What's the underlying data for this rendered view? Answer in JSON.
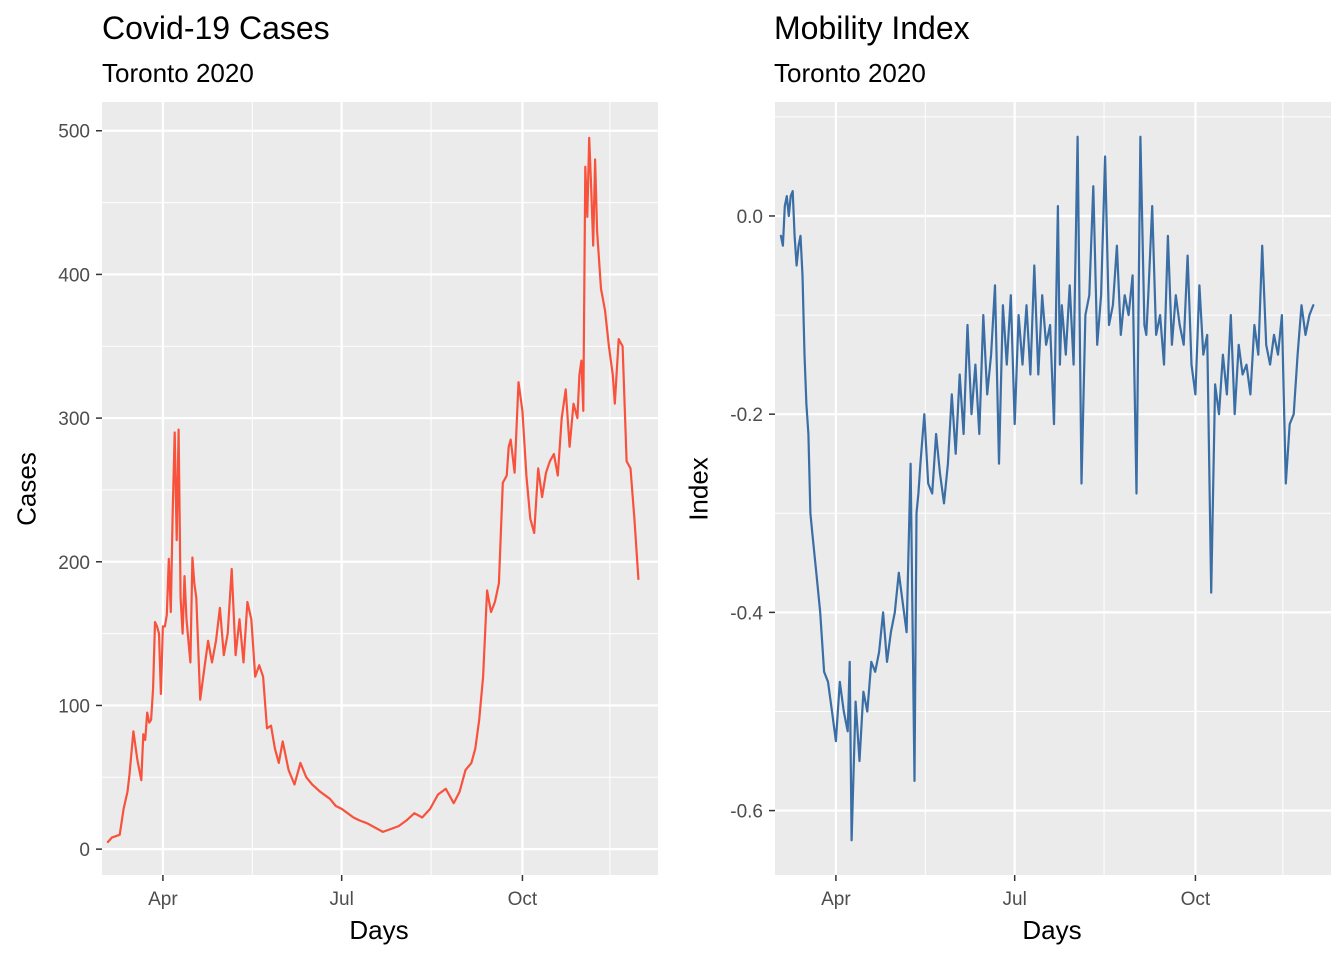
{
  "chart_data": [
    {
      "type": "line",
      "title": "Covid-19 Cases",
      "subtitle": "Toronto 2020",
      "xlabel": "Days",
      "ylabel": "Cases",
      "color": "#f8523d",
      "grid": true,
      "ylim": [
        -18,
        520
      ],
      "xlim": [
        "2020-03-01",
        "2020-12-09"
      ],
      "x_ticks": [
        {
          "date": "2020-04-01",
          "label": "Apr"
        },
        {
          "date": "2020-07-01",
          "label": "Jul"
        },
        {
          "date": "2020-10-01",
          "label": "Oct"
        }
      ],
      "y_ticks": [
        {
          "value": 0,
          "label": "0"
        },
        {
          "value": 100,
          "label": "100"
        },
        {
          "value": 200,
          "label": "200"
        },
        {
          "value": 300,
          "label": "300"
        },
        {
          "value": 400,
          "label": "400"
        },
        {
          "value": 500,
          "label": "500"
        }
      ],
      "series": [
        {
          "x": [
            "2020-03-04",
            "2020-03-06",
            "2020-03-08",
            "2020-03-10",
            "2020-03-12",
            "2020-03-14",
            "2020-03-15",
            "2020-03-17",
            "2020-03-19",
            "2020-03-21",
            "2020-03-22",
            "2020-03-23",
            "2020-03-24",
            "2020-03-25",
            "2020-03-26",
            "2020-03-27",
            "2020-03-28",
            "2020-03-29",
            "2020-03-30",
            "2020-03-31",
            "2020-04-01",
            "2020-04-02",
            "2020-04-03",
            "2020-04-04",
            "2020-04-05",
            "2020-04-06",
            "2020-04-07",
            "2020-04-08",
            "2020-04-09",
            "2020-04-10",
            "2020-04-11",
            "2020-04-12",
            "2020-04-13",
            "2020-04-14",
            "2020-04-15",
            "2020-04-16",
            "2020-04-17",
            "2020-04-18",
            "2020-04-20",
            "2020-04-22",
            "2020-04-24",
            "2020-04-26",
            "2020-04-28",
            "2020-04-30",
            "2020-05-02",
            "2020-05-04",
            "2020-05-06",
            "2020-05-08",
            "2020-05-10",
            "2020-05-12",
            "2020-05-14",
            "2020-05-16",
            "2020-05-18",
            "2020-05-20",
            "2020-05-22",
            "2020-05-24",
            "2020-05-26",
            "2020-05-28",
            "2020-05-30",
            "2020-06-01",
            "2020-06-04",
            "2020-06-07",
            "2020-06-10",
            "2020-06-13",
            "2020-06-16",
            "2020-06-20",
            "2020-06-25",
            "2020-06-28",
            "2020-07-01",
            "2020-07-04",
            "2020-07-07",
            "2020-07-10",
            "2020-07-14",
            "2020-07-18",
            "2020-07-22",
            "2020-07-26",
            "2020-07-30",
            "2020-08-03",
            "2020-08-07",
            "2020-08-11",
            "2020-08-15",
            "2020-08-19",
            "2020-08-23",
            "2020-08-27",
            "2020-08-30",
            "2020-09-02",
            "2020-09-05",
            "2020-09-07",
            "2020-09-09",
            "2020-09-11",
            "2020-09-13",
            "2020-09-15",
            "2020-09-17",
            "2020-09-19",
            "2020-09-21",
            "2020-09-23",
            "2020-09-24",
            "2020-09-25",
            "2020-09-27",
            "2020-09-29",
            "2020-10-01",
            "2020-10-03",
            "2020-10-05",
            "2020-10-07",
            "2020-10-09",
            "2020-10-11",
            "2020-10-13",
            "2020-10-15",
            "2020-10-17",
            "2020-10-19",
            "2020-10-21",
            "2020-10-23",
            "2020-10-25",
            "2020-10-27",
            "2020-10-29",
            "2020-10-30",
            "2020-10-31",
            "2020-11-01",
            "2020-11-02",
            "2020-11-03",
            "2020-11-04",
            "2020-11-05",
            "2020-11-06",
            "2020-11-07",
            "2020-11-08",
            "2020-11-10",
            "2020-11-12",
            "2020-11-14",
            "2020-11-16",
            "2020-11-17",
            "2020-11-19",
            "2020-11-21",
            "2020-11-23",
            "2020-11-25",
            "2020-11-27",
            "2020-11-29"
          ],
          "y": [
            5,
            8,
            9,
            10,
            28,
            40,
            52,
            82,
            62,
            48,
            80,
            76,
            95,
            88,
            90,
            112,
            158,
            155,
            150,
            108,
            155,
            155,
            163,
            202,
            165,
            235,
            290,
            215,
            292,
            175,
            150,
            190,
            160,
            145,
            130,
            203,
            185,
            175,
            104,
            125,
            145,
            130,
            145,
            168,
            135,
            150,
            195,
            135,
            160,
            130,
            172,
            160,
            120,
            128,
            120,
            84,
            86,
            70,
            60,
            75,
            55,
            45,
            60,
            50,
            45,
            40,
            35,
            30,
            28,
            25,
            22,
            20,
            18,
            15,
            12,
            14,
            16,
            20,
            25,
            22,
            28,
            38,
            42,
            32,
            40,
            55,
            60,
            70,
            90,
            120,
            180,
            165,
            172,
            185,
            255,
            260,
            280,
            285,
            262,
            325,
            305,
            260,
            230,
            220,
            265,
            245,
            262,
            270,
            275,
            260,
            300,
            320,
            280,
            310,
            300,
            330,
            340,
            305,
            475,
            440,
            495,
            460,
            420,
            480,
            430,
            390,
            375,
            350,
            330,
            310,
            355,
            350,
            270,
            265,
            230,
            188
          ]
        }
      ]
    },
    {
      "type": "line",
      "title": "Mobility Index",
      "subtitle": "Toronto 2020",
      "xlabel": "Days",
      "ylabel": "Index",
      "color": "#3a6ea5",
      "grid": true,
      "ylim": [
        -0.665,
        0.115
      ],
      "xlim": [
        "2020-03-01",
        "2020-12-09"
      ],
      "x_ticks": [
        {
          "date": "2020-04-01",
          "label": "Apr"
        },
        {
          "date": "2020-07-01",
          "label": "Jul"
        },
        {
          "date": "2020-10-01",
          "label": "Oct"
        }
      ],
      "y_ticks": [
        {
          "value": 0.0,
          "label": "0.0"
        },
        {
          "value": -0.2,
          "label": "-0.2"
        },
        {
          "value": -0.4,
          "label": "-0.4"
        },
        {
          "value": -0.6,
          "label": "-0.6"
        }
      ],
      "series": [
        {
          "x": [
            "2020-03-04",
            "2020-03-05",
            "2020-03-06",
            "2020-03-07",
            "2020-03-08",
            "2020-03-09",
            "2020-03-10",
            "2020-03-11",
            "2020-03-12",
            "2020-03-13",
            "2020-03-14",
            "2020-03-15",
            "2020-03-16",
            "2020-03-17",
            "2020-03-18",
            "2020-03-19",
            "2020-03-20",
            "2020-03-22",
            "2020-03-24",
            "2020-03-26",
            "2020-03-28",
            "2020-03-30",
            "2020-04-01",
            "2020-04-03",
            "2020-04-05",
            "2020-04-07",
            "2020-04-08",
            "2020-04-09",
            "2020-04-11",
            "2020-04-13",
            "2020-04-15",
            "2020-04-17",
            "2020-04-19",
            "2020-04-21",
            "2020-04-23",
            "2020-04-25",
            "2020-04-27",
            "2020-04-29",
            "2020-05-01",
            "2020-05-03",
            "2020-05-05",
            "2020-05-07",
            "2020-05-09",
            "2020-05-11",
            "2020-05-12",
            "2020-05-13",
            "2020-05-14",
            "2020-05-16",
            "2020-05-18",
            "2020-05-20",
            "2020-05-22",
            "2020-05-24",
            "2020-05-26",
            "2020-05-28",
            "2020-05-30",
            "2020-06-01",
            "2020-06-03",
            "2020-06-05",
            "2020-06-07",
            "2020-06-09",
            "2020-06-11",
            "2020-06-13",
            "2020-06-15",
            "2020-06-17",
            "2020-06-19",
            "2020-06-21",
            "2020-06-23",
            "2020-06-25",
            "2020-06-27",
            "2020-06-29",
            "2020-07-01",
            "2020-07-03",
            "2020-07-05",
            "2020-07-07",
            "2020-07-09",
            "2020-07-11",
            "2020-07-13",
            "2020-07-15",
            "2020-07-17",
            "2020-07-19",
            "2020-07-21",
            "2020-07-23",
            "2020-07-24",
            "2020-07-25",
            "2020-07-27",
            "2020-07-29",
            "2020-07-31",
            "2020-08-02",
            "2020-08-04",
            "2020-08-06",
            "2020-08-08",
            "2020-08-10",
            "2020-08-12",
            "2020-08-14",
            "2020-08-16",
            "2020-08-18",
            "2020-08-20",
            "2020-08-22",
            "2020-08-24",
            "2020-08-26",
            "2020-08-28",
            "2020-08-30",
            "2020-09-01",
            "2020-09-03",
            "2020-09-05",
            "2020-09-06",
            "2020-09-07",
            "2020-09-09",
            "2020-09-11",
            "2020-09-13",
            "2020-09-15",
            "2020-09-17",
            "2020-09-19",
            "2020-09-21",
            "2020-09-23",
            "2020-09-25",
            "2020-09-27",
            "2020-09-29",
            "2020-10-01",
            "2020-10-03",
            "2020-10-05",
            "2020-10-07",
            "2020-10-09",
            "2020-10-11",
            "2020-10-13",
            "2020-10-15",
            "2020-10-17",
            "2020-10-19",
            "2020-10-21",
            "2020-10-23",
            "2020-10-25",
            "2020-10-27",
            "2020-10-29",
            "2020-10-31",
            "2020-11-02",
            "2020-11-04",
            "2020-11-06",
            "2020-11-08",
            "2020-11-10",
            "2020-11-12",
            "2020-11-14",
            "2020-11-16",
            "2020-11-18",
            "2020-11-20",
            "2020-11-22",
            "2020-11-24",
            "2020-11-26",
            "2020-11-28",
            "2020-11-30"
          ],
          "y": [
            -0.02,
            -0.03,
            0.01,
            0.02,
            0.0,
            0.02,
            0.025,
            -0.02,
            -0.05,
            -0.03,
            -0.02,
            -0.06,
            -0.14,
            -0.19,
            -0.22,
            -0.3,
            -0.32,
            -0.36,
            -0.4,
            -0.46,
            -0.47,
            -0.5,
            -0.53,
            -0.47,
            -0.5,
            -0.52,
            -0.45,
            -0.63,
            -0.49,
            -0.55,
            -0.48,
            -0.5,
            -0.45,
            -0.46,
            -0.44,
            -0.4,
            -0.45,
            -0.42,
            -0.4,
            -0.36,
            -0.39,
            -0.42,
            -0.25,
            -0.57,
            -0.3,
            -0.28,
            -0.25,
            -0.2,
            -0.27,
            -0.28,
            -0.22,
            -0.26,
            -0.29,
            -0.25,
            -0.18,
            -0.24,
            -0.16,
            -0.22,
            -0.11,
            -0.2,
            -0.15,
            -0.22,
            -0.1,
            -0.18,
            -0.14,
            -0.07,
            -0.25,
            -0.09,
            -0.15,
            -0.08,
            -0.21,
            -0.1,
            -0.15,
            -0.09,
            -0.16,
            -0.05,
            -0.16,
            -0.08,
            -0.13,
            -0.11,
            -0.21,
            0.01,
            -0.15,
            -0.09,
            -0.14,
            -0.07,
            -0.15,
            0.08,
            -0.27,
            -0.1,
            -0.08,
            0.03,
            -0.13,
            -0.08,
            0.06,
            -0.11,
            -0.09,
            -0.03,
            -0.12,
            -0.08,
            -0.1,
            -0.06,
            -0.28,
            0.08,
            -0.11,
            -0.12,
            -0.08,
            0.01,
            -0.12,
            -0.1,
            -0.15,
            -0.02,
            -0.13,
            -0.08,
            -0.11,
            -0.13,
            -0.04,
            -0.15,
            -0.18,
            -0.07,
            -0.14,
            -0.12,
            -0.38,
            -0.17,
            -0.2,
            -0.14,
            -0.18,
            -0.1,
            -0.2,
            -0.13,
            -0.16,
            -0.15,
            -0.18,
            -0.11,
            -0.14,
            -0.03,
            -0.13,
            -0.15,
            -0.12,
            -0.14,
            -0.1,
            -0.27,
            -0.21,
            -0.2,
            -0.14,
            -0.09,
            -0.12,
            -0.1,
            -0.09
          ]
        }
      ]
    }
  ]
}
